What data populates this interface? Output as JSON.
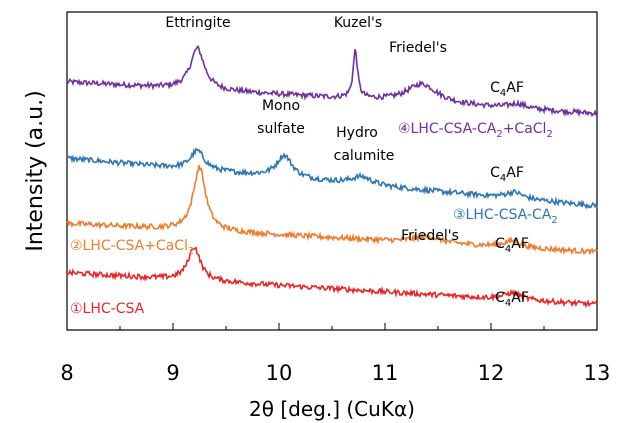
{
  "chart_data": {
    "type": "line",
    "title": "",
    "xlabel": "2θ [deg.] (CuKα)",
    "ylabel": "Intensity (a.u.)",
    "xlim": [
      8,
      13
    ],
    "x_ticks": [
      "8",
      "9",
      "10",
      "11",
      "12",
      "13"
    ],
    "grid": false,
    "legend": "inline labels",
    "series": [
      {
        "name": "④LHC-CSA-CA₂+CaCl₂",
        "color": "#7030a0",
        "baseline": 0.78,
        "slope": -0.02,
        "noise": 0.008,
        "peaks": [
          {
            "x": 9.23,
            "height": 0.13,
            "width": 0.08
          },
          {
            "x": 10.72,
            "height": 0.15,
            "width": 0.025
          },
          {
            "x": 11.35,
            "height": 0.06,
            "width": 0.18
          },
          {
            "x": 12.25,
            "height": 0.015,
            "width": 0.1
          }
        ]
      },
      {
        "name": "③LHC-CSA-CA₂",
        "color": "#2e75b6",
        "baseline": 0.54,
        "slope": -0.03,
        "noise": 0.008,
        "peaks": [
          {
            "x": 9.23,
            "height": 0.06,
            "width": 0.08
          },
          {
            "x": 10.05,
            "height": 0.07,
            "width": 0.09
          },
          {
            "x": 10.78,
            "height": 0.025,
            "width": 0.12
          },
          {
            "x": 12.22,
            "height": 0.02,
            "width": 0.1
          }
        ]
      },
      {
        "name": "②LHC-CSA+CaCl₂",
        "color": "#ed7d31",
        "baseline": 0.335,
        "slope": -0.018,
        "noise": 0.008,
        "peaks": [
          {
            "x": 9.25,
            "height": 0.2,
            "width": 0.07
          },
          {
            "x": 11.4,
            "height": 0.02,
            "width": 0.15
          },
          {
            "x": 12.2,
            "height": 0.02,
            "width": 0.1
          }
        ]
      },
      {
        "name": "①LHC-CSA",
        "color": "#e8272a",
        "baseline": 0.18,
        "slope": -0.02,
        "noise": 0.008,
        "peaks": [
          {
            "x": 9.2,
            "height": 0.105,
            "width": 0.07
          },
          {
            "x": 12.2,
            "height": 0.02,
            "width": 0.1
          }
        ]
      }
    ],
    "annotations": {
      "ettringite": "Ettringite",
      "kuzels": "Kuzel's",
      "friedels_top": "Friedel's",
      "c4af_top_main": "C",
      "c4af_top_sub": "4",
      "c4af_top_tail": "AF",
      "mono": "Mono",
      "sulfate": "sulfate",
      "hydro": "Hydro",
      "calumite": "calumite",
      "c4af_3_main": "C",
      "c4af_3_sub": "4",
      "c4af_3_tail": "AF",
      "friedels_2": "Friedel's",
      "c4af_2_main": "C",
      "c4af_2_sub": "4",
      "c4af_2_tail": "AF",
      "c4af_1_main": "C",
      "c4af_1_sub": "4",
      "c4af_1_tail": "AF"
    },
    "series_labels": {
      "s4_main": "④LHC-CSA-CA",
      "s4_sub1": "2",
      "s4_mid": "+CaCl",
      "s4_sub2": "2",
      "s3_main": "③LHC-CSA-CA",
      "s3_sub": "2",
      "s2_main": "②LHC-CSA+CaCl",
      "s2_sub": "2",
      "s1_main": "①LHC-CSA"
    }
  }
}
